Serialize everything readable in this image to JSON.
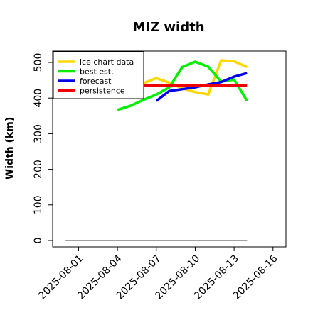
{
  "colors": {
    "ice_chart": "#FFD700",
    "best_est": "#00EE00",
    "forecast": "#0000EE",
    "persistence": "#EE0000",
    "reference_line": "#808080",
    "highlight_tick": "#228B22",
    "text": "#000000"
  },
  "chart_data": {
    "type": "line",
    "title": "MIZ width",
    "xlabel": "",
    "ylabel": "Width (km)",
    "ylim": [
      0,
      500
    ],
    "yticks": [
      0,
      100,
      200,
      300,
      400,
      500
    ],
    "xrange": [
      "2025-07-30",
      "2025-08-17"
    ],
    "xticks": [
      {
        "label": "2025-08-01",
        "date": "2025-08-01",
        "color": "#000000"
      },
      {
        "label": "2025-08-04",
        "date": "2025-08-04",
        "color": "#000000"
      },
      {
        "label": "2025-08-07",
        "date": "2025-08-07",
        "color": "#228B22"
      },
      {
        "label": "2025-08-10",
        "date": "2025-08-10",
        "color": "#000000"
      },
      {
        "label": "2025-08-13",
        "date": "2025-08-13",
        "color": "#000000"
      },
      {
        "label": "2025-08-16",
        "date": "2025-08-16",
        "color": "#000000"
      }
    ],
    "legend_position": "top-left",
    "grid": false,
    "series": [
      {
        "name": "ice chart data",
        "color_key": "ice_chart",
        "points": [
          {
            "x": "2025-08-04",
            "y": 398
          },
          {
            "x": "2025-08-05",
            "y": 418
          },
          {
            "x": "2025-08-06",
            "y": 442
          },
          {
            "x": "2025-08-07",
            "y": 456
          },
          {
            "x": "2025-08-08",
            "y": 443
          },
          {
            "x": "2025-08-09",
            "y": 427
          },
          {
            "x": "2025-08-10",
            "y": 417
          },
          {
            "x": "2025-08-11",
            "y": 410
          },
          {
            "x": "2025-08-12",
            "y": 506
          },
          {
            "x": "2025-08-13",
            "y": 503
          },
          {
            "x": "2025-08-14",
            "y": 487
          }
        ]
      },
      {
        "name": "best est.",
        "color_key": "best_est",
        "points": [
          {
            "x": "2025-08-04",
            "y": 367
          },
          {
            "x": "2025-08-05",
            "y": 378
          },
          {
            "x": "2025-08-06",
            "y": 395
          },
          {
            "x": "2025-08-07",
            "y": 410
          },
          {
            "x": "2025-08-08",
            "y": 430
          },
          {
            "x": "2025-08-09",
            "y": 487
          },
          {
            "x": "2025-08-10",
            "y": 502
          },
          {
            "x": "2025-08-11",
            "y": 488
          },
          {
            "x": "2025-08-12",
            "y": 446
          },
          {
            "x": "2025-08-13",
            "y": 452
          },
          {
            "x": "2025-08-14",
            "y": 392
          }
        ]
      },
      {
        "name": "forecast",
        "color_key": "forecast",
        "points": [
          {
            "x": "2025-08-07",
            "y": 392
          },
          {
            "x": "2025-08-08",
            "y": 420
          },
          {
            "x": "2025-08-09",
            "y": 425
          },
          {
            "x": "2025-08-10",
            "y": 430
          },
          {
            "x": "2025-08-11",
            "y": 438
          },
          {
            "x": "2025-08-12",
            "y": 445
          },
          {
            "x": "2025-08-13",
            "y": 460
          },
          {
            "x": "2025-08-14",
            "y": 470
          }
        ]
      },
      {
        "name": "persistence",
        "color_key": "persistence",
        "points": [
          {
            "x": "2025-08-06",
            "y": 435
          },
          {
            "x": "2025-08-14",
            "y": 435
          }
        ]
      }
    ],
    "reference_line": {
      "color_key": "reference_line",
      "points": [
        {
          "x": "2025-07-31",
          "y": 0
        },
        {
          "x": "2025-08-14",
          "y": 0
        }
      ]
    }
  }
}
